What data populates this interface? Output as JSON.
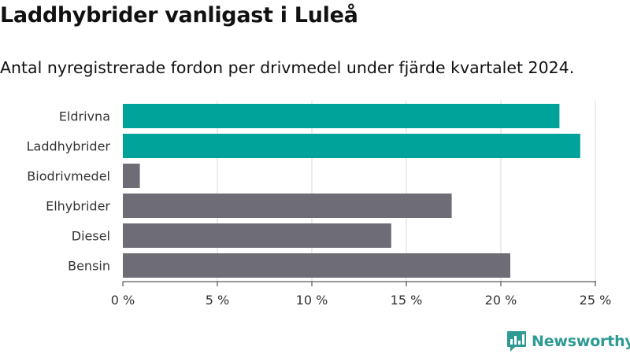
{
  "header": {
    "title": "Laddhybrider vanligast i Luleå",
    "subtitle": "Antal nyregistrerade fordon per drivmedel under fjärde kvartalet 2024."
  },
  "branding": {
    "logo_text": "Newsworthy",
    "logo_icon": "bar-chart-speech-bubble-icon",
    "logo_color": "#2e9a93"
  },
  "colors": {
    "highlight": "#00a39a",
    "default": "#6e6d75",
    "grid": "#d9d9d9",
    "axis": "#333333"
  },
  "chart_data": {
    "type": "bar",
    "orientation": "horizontal",
    "categories": [
      "Eldrivna",
      "Laddhybrider",
      "Biodrivmedel",
      "Elhybrider",
      "Diesel",
      "Bensin"
    ],
    "values": [
      23.1,
      24.2,
      0.9,
      17.4,
      14.2,
      20.5
    ],
    "highlighted": [
      "Eldrivna",
      "Laddhybrider"
    ],
    "xlim": [
      0,
      25
    ],
    "ticks": [
      0,
      5,
      10,
      15,
      20,
      25
    ],
    "tick_labels": [
      "0 %",
      "5 %",
      "10 %",
      "15 %",
      "20 %",
      "25 %"
    ],
    "grid": true,
    "xlabel": "",
    "ylabel": ""
  }
}
